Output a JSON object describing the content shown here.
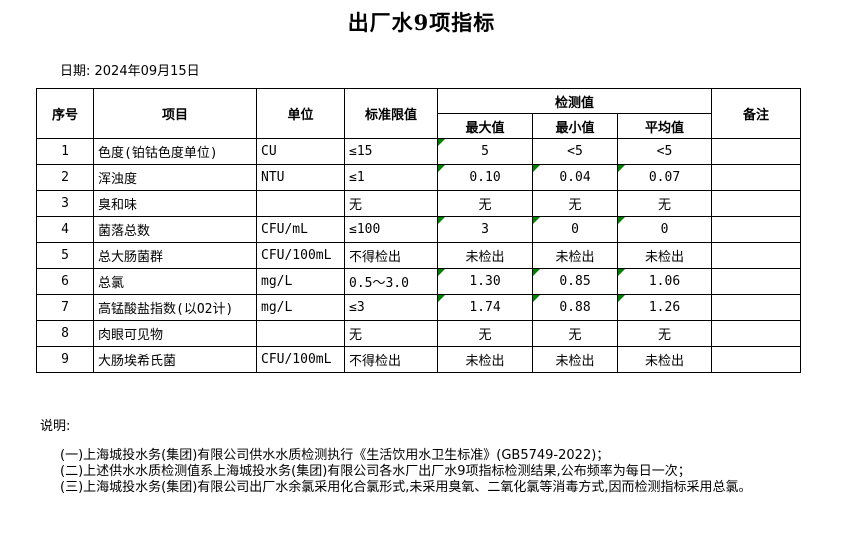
{
  "title": "出厂水9项指标",
  "date_line": "日期: 2024年09月15日",
  "table": {
    "headers": {
      "no": "序号",
      "item": "项目",
      "unit": "单位",
      "limit": "标准限值",
      "detection": "检测值",
      "max": "最大值",
      "min": "最小值",
      "avg": "平均值",
      "remark": "备注"
    },
    "marker_color": "#008000",
    "rows": [
      {
        "no": "1",
        "item": "色度(铂钴色度单位)",
        "unit": "CU",
        "limit": "≤15",
        "max": "5",
        "min": "<5",
        "avg": "<5",
        "remark": "",
        "marked": [
          "max"
        ]
      },
      {
        "no": "2",
        "item": "浑浊度",
        "unit": "NTU",
        "limit": "≤1",
        "max": "0.10",
        "min": "0.04",
        "avg": "0.07",
        "remark": "",
        "marked": [
          "max",
          "min",
          "avg"
        ]
      },
      {
        "no": "3",
        "item": "臭和味",
        "unit": "",
        "limit": "无",
        "max": "无",
        "min": "无",
        "avg": "无",
        "remark": "",
        "marked": []
      },
      {
        "no": "4",
        "item": "菌落总数",
        "unit": "CFU/mL",
        "limit": "≤100",
        "max": "3",
        "min": "0",
        "avg": "0",
        "remark": "",
        "marked": [
          "max",
          "min",
          "avg"
        ]
      },
      {
        "no": "5",
        "item": "总大肠菌群",
        "unit": "CFU/100mL",
        "limit": "不得检出",
        "max": "未检出",
        "min": "未检出",
        "avg": "未检出",
        "remark": "",
        "marked": []
      },
      {
        "no": "6",
        "item": "总氯",
        "unit": "mg/L",
        "limit": "0.5～3.0",
        "max": "1.30",
        "min": "0.85",
        "avg": "1.06",
        "remark": "",
        "marked": [
          "max",
          "min",
          "avg"
        ]
      },
      {
        "no": "7",
        "item": "高锰酸盐指数(以O2计)",
        "unit": "mg/L",
        "limit": "≤3",
        "max": "1.74",
        "min": "0.88",
        "avg": "1.26",
        "remark": "",
        "marked": [
          "max",
          "min",
          "avg"
        ]
      },
      {
        "no": "8",
        "item": "肉眼可见物",
        "unit": "",
        "limit": "无",
        "max": "无",
        "min": "无",
        "avg": "无",
        "remark": "",
        "marked": []
      },
      {
        "no": "9",
        "item": "大肠埃希氏菌",
        "unit": "CFU/100mL",
        "limit": "不得检出",
        "max": "未检出",
        "min": "未检出",
        "avg": "未检出",
        "remark": "",
        "marked": []
      }
    ]
  },
  "notes": {
    "label": "说明:",
    "items": [
      "(一)上海城投水务(集团)有限公司供水水质检测执行《生活饮用水卫生标准》(GB5749-2022)；",
      "(二)上述供水水质检测值系上海城投水务(集团)有限公司各水厂出厂水9项指标检测结果,公布频率为每日一次；",
      "(三)上海城投水务(集团)有限公司出厂水余氯采用化合氯形式,未采用臭氧、二氧化氯等消毒方式,因而检测指标采用总氯。"
    ]
  }
}
